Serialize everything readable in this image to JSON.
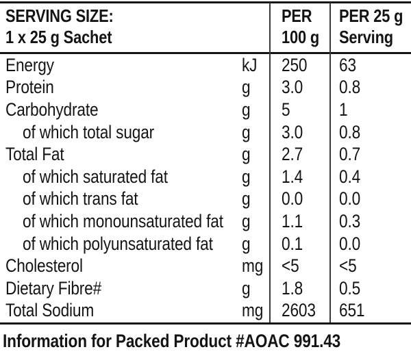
{
  "table": {
    "header": {
      "serving_line1": "SERVING SIZE:",
      "serving_line2": "1 x 25 g Sachet",
      "per100_line1": "PER",
      "per100_line2": "100 g",
      "per25_line1": "PER 25 g",
      "per25_line2": "Serving"
    },
    "rows": [
      {
        "label": "Energy",
        "unit": "kJ",
        "per100": "250",
        "per25": "63"
      },
      {
        "label": "Protein",
        "unit": "g",
        "per100": "3.0",
        "per25": "0.8"
      },
      {
        "label": "Carbohydrate",
        "unit": "g",
        "per100": "5",
        "per25": "1"
      },
      {
        "label": "of which total sugar",
        "unit": "g",
        "per100": "3.0",
        "per25": "0.8"
      },
      {
        "label": "Total Fat",
        "unit": "g",
        "per100": "2.7",
        "per25": "0.7"
      },
      {
        "label": "of which saturated fat",
        "unit": "g",
        "per100": "1.4",
        "per25": "0.4"
      },
      {
        "label": "of which trans fat",
        "unit": "g",
        "per100": "0.0",
        "per25": "0.0"
      },
      {
        "label": "of which monounsaturated fat",
        "unit": "g",
        "per100": "1.1",
        "per25": "0.3"
      },
      {
        "label": "of which polyunsaturated fat",
        "unit": "g",
        "per100": "0.1",
        "per25": "0.0"
      },
      {
        "label": "Cholesterol",
        "unit": "mg",
        "per100": "<5",
        "per25": "<5"
      },
      {
        "label": "Dietary Fibre#",
        "unit": "g",
        "per100": "1.8",
        "per25": "0.5"
      },
      {
        "label": "Total Sodium",
        "unit": "mg",
        "per100": "2603",
        "per25": "651"
      }
    ],
    "footer_note": "Information for Packed Product #AOAC 991.43"
  },
  "colors": {
    "background": "#ffffff",
    "text": "#141414",
    "horizontal_rule": "#141414",
    "column_divider": "#3a3a3a"
  }
}
